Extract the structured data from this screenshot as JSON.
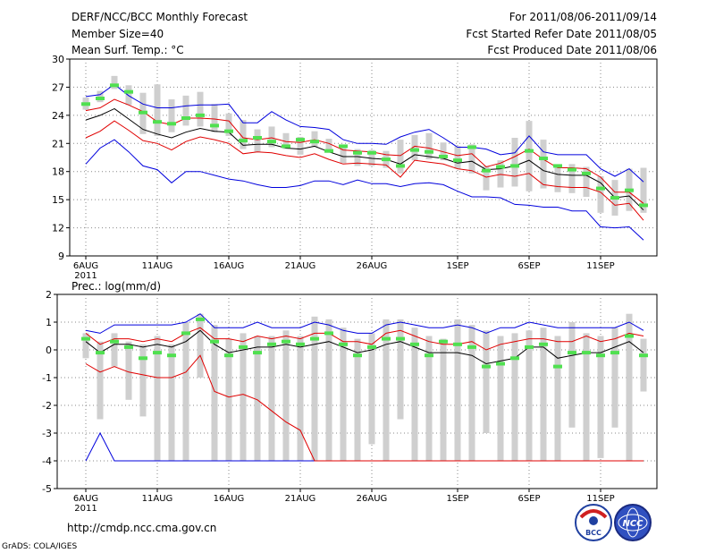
{
  "header": {
    "title": "DERF/NCC/BCC Monthly Forecast",
    "member_size": "Member Size=40",
    "variable": "Mean Surf. Temp.: °C",
    "period": "For 2011/08/06-2011/09/14",
    "refer_date": "Fcst Started Refer Date 2011/08/05",
    "produced_date": "Fcst Produced Date 2011/08/06"
  },
  "footer": {
    "url": "http://cmdp.ncc.cma.gov.cn",
    "grads": "GrADS: COLA/IGES"
  },
  "logos": {
    "bcc": "BCC",
    "ncc": "NCC"
  },
  "colors": {
    "box": "#cfcfcf",
    "median": "#50e050",
    "mean": "#000000",
    "inner": "#e00000",
    "outer": "#0000dd",
    "grid": "#888888"
  },
  "chart_data": [
    {
      "type": "box",
      "title": "Mean Surf. Temp.: °C",
      "ylim": [
        9,
        30
      ],
      "yticks": [
        9,
        12,
        15,
        18,
        21,
        24,
        27,
        30
      ],
      "xlim": [
        0,
        39
      ],
      "xtick_positions": [
        0,
        5,
        10,
        15,
        20,
        26,
        31,
        36
      ],
      "xtick_labels": [
        "6AUG",
        "11AUG",
        "16AUG",
        "21AUG",
        "26AUG",
        "1SEP",
        "6SEP",
        "11SEP"
      ],
      "year_label": "2011",
      "box_low": [
        24.6,
        25.4,
        26.8,
        25.1,
        22.0,
        21.8,
        22.2,
        22.9,
        22.8,
        22.2,
        21.8,
        20.4,
        20.1,
        20.6,
        20.4,
        19.8,
        20.6,
        20.0,
        18.9,
        18.6,
        18.6,
        18.4,
        17.8,
        19.2,
        19.3,
        19.2,
        18.3,
        17.8,
        16.0,
        16.3,
        16.4,
        15.9,
        16.2,
        15.8,
        15.7,
        15.3,
        13.6,
        13.3,
        13.8,
        13.6
      ],
      "box_high": [
        25.9,
        26.6,
        28.2,
        27.2,
        26.4,
        27.3,
        25.7,
        26.1,
        26.5,
        25.2,
        24.2,
        23.5,
        22.5,
        22.8,
        22.1,
        21.7,
        22.3,
        21.5,
        20.8,
        20.4,
        20.3,
        20.2,
        21.4,
        21.9,
        22.1,
        21.1,
        20.7,
        20.9,
        18.6,
        19.2,
        21.6,
        23.4,
        21.4,
        18.6,
        18.8,
        18.5,
        17.5,
        17.1,
        18.3,
        18.4
      ],
      "median": [
        25.2,
        25.8,
        27.2,
        26.5,
        24.3,
        23.3,
        23.1,
        23.7,
        24.0,
        22.9,
        22.3,
        21.3,
        21.6,
        21.2,
        20.7,
        21.4,
        21.2,
        20.2,
        20.7,
        20.0,
        20.0,
        19.3,
        18.6,
        20.3,
        20.1,
        19.6,
        19.2,
        20.6,
        18.1,
        18.5,
        18.6,
        20.2,
        19.4,
        18.6,
        18.2,
        17.8,
        16.2,
        15.2,
        16.0,
        14.4
      ],
      "mean": [
        23.5,
        24.0,
        24.7,
        23.6,
        22.5,
        22.0,
        21.6,
        22.2,
        22.6,
        22.3,
        22.2,
        20.8,
        20.9,
        20.9,
        20.5,
        20.4,
        20.7,
        20.1,
        19.6,
        19.6,
        19.4,
        19.3,
        18.8,
        19.8,
        19.6,
        19.4,
        18.9,
        19.1,
        18.2,
        18.3,
        18.6,
        19.2,
        18.1,
        17.7,
        17.6,
        17.6,
        16.8,
        15.2,
        15.4,
        13.9
      ],
      "inner_high": [
        24.5,
        24.8,
        25.7,
        25.1,
        24.4,
        23.3,
        23.0,
        23.7,
        23.7,
        23.6,
        23.4,
        21.6,
        21.4,
        21.6,
        21.2,
        21.1,
        21.4,
        21.0,
        20.3,
        20.2,
        20.1,
        19.8,
        19.7,
        20.7,
        20.5,
        20.1,
        19.7,
        19.9,
        18.5,
        18.9,
        19.6,
        20.4,
        19.3,
        18.4,
        18.4,
        18.3,
        17.4,
        15.8,
        15.8,
        14.6
      ],
      "inner_low": [
        21.6,
        22.3,
        23.4,
        22.4,
        21.3,
        21.0,
        20.3,
        21.2,
        21.7,
        21.4,
        21.0,
        19.9,
        20.1,
        20.0,
        19.7,
        19.5,
        19.9,
        19.3,
        18.8,
        18.9,
        18.8,
        18.7,
        17.4,
        19.2,
        19.0,
        18.8,
        18.3,
        18.1,
        17.4,
        17.7,
        17.5,
        17.8,
        16.6,
        16.4,
        16.3,
        16.3,
        15.8,
        14.4,
        14.6,
        12.8
      ],
      "outer_high": [
        26.0,
        26.2,
        27.3,
        26.1,
        25.2,
        24.8,
        24.8,
        25.0,
        25.1,
        25.1,
        25.2,
        23.2,
        23.2,
        24.4,
        23.5,
        22.8,
        22.7,
        22.5,
        21.4,
        21.0,
        21.0,
        20.9,
        21.7,
        22.2,
        22.5,
        21.6,
        20.6,
        20.6,
        20.4,
        19.8,
        20.0,
        21.8,
        20.1,
        19.8,
        19.8,
        19.8,
        18.3,
        17.5,
        18.3,
        16.9
      ],
      "outer_low": [
        18.8,
        20.5,
        21.4,
        20.1,
        18.6,
        18.2,
        16.8,
        18.0,
        18.0,
        17.6,
        17.2,
        17.0,
        16.6,
        16.3,
        16.3,
        16.5,
        17.0,
        17.0,
        16.6,
        17.1,
        16.7,
        16.7,
        16.4,
        16.7,
        16.8,
        16.6,
        15.9,
        15.3,
        15.3,
        15.2,
        14.5,
        14.4,
        14.2,
        14.2,
        13.8,
        13.8,
        12.1,
        12.0,
        12.1,
        10.7
      ]
    },
    {
      "type": "box",
      "title": "Prec.: log(mm/d)",
      "ylim": [
        -5,
        2
      ],
      "yticks": [
        -5,
        -4,
        -3,
        -2,
        -1,
        0,
        1,
        2
      ],
      "xlim": [
        0,
        39
      ],
      "xtick_positions": [
        0,
        5,
        10,
        15,
        20,
        26,
        31,
        36
      ],
      "xtick_labels": [
        "6AUG",
        "11AUG",
        "16AUG",
        "21AUG",
        "26AUG",
        "1SEP",
        "6SEP",
        "11SEP"
      ],
      "year_label": "2011",
      "box_low": [
        -0.3,
        -2.5,
        -0.6,
        -1.8,
        -2.4,
        -4.0,
        -4.0,
        -4.0,
        -1.0,
        -4.0,
        -4.0,
        -4.0,
        -4.0,
        -4.0,
        -4.0,
        -4.0,
        -4.0,
        -4.0,
        -4.0,
        -4.0,
        -3.4,
        -4.0,
        -2.5,
        -4.0,
        -4.0,
        -4.0,
        -4.0,
        -4.0,
        -3.0,
        -4.0,
        -4.0,
        -4.0,
        -4.0,
        -4.0,
        -2.8,
        -4.0,
        -3.9,
        -2.8,
        -4.0,
        -1.5
      ],
      "box_high": [
        0.6,
        0.3,
        0.6,
        0.3,
        0.2,
        0.5,
        0.2,
        1.0,
        1.3,
        0.9,
        0.4,
        0.6,
        0.5,
        0.5,
        0.7,
        0.5,
        1.2,
        1.1,
        0.8,
        0.4,
        0.6,
        1.1,
        1.1,
        0.8,
        0.5,
        0.4,
        1.1,
        0.9,
        0.7,
        0.5,
        0.6,
        0.7,
        0.8,
        0.5,
        1.0,
        0.6,
        0.5,
        0.8,
        1.3,
        0.4
      ],
      "median": [
        0.4,
        -0.1,
        0.3,
        0.1,
        -0.3,
        -0.1,
        -0.2,
        0.6,
        1.1,
        0.3,
        -0.2,
        0.1,
        -0.1,
        0.2,
        0.3,
        0.2,
        0.4,
        0.6,
        0.2,
        -0.2,
        0.1,
        0.4,
        0.4,
        0.2,
        -0.2,
        0.3,
        0.2,
        0.1,
        -0.6,
        -0.5,
        -0.3,
        0.1,
        0.2,
        -0.6,
        -0.1,
        -0.1,
        -0.2,
        -0.1,
        0.5,
        -0.2
      ],
      "mean": [
        0.3,
        -0.1,
        0.2,
        0.2,
        0.1,
        0.2,
        0.1,
        0.3,
        0.7,
        0.2,
        -0.1,
        0.0,
        0.1,
        0.1,
        0.2,
        0.1,
        0.2,
        0.3,
        0.1,
        -0.1,
        0.0,
        0.2,
        0.3,
        0.1,
        -0.1,
        -0.1,
        -0.1,
        -0.2,
        -0.5,
        -0.4,
        -0.3,
        0.1,
        0.1,
        -0.3,
        -0.2,
        -0.1,
        -0.1,
        0.1,
        0.3,
        -0.1
      ],
      "inner_high": [
        0.6,
        0.2,
        0.4,
        0.4,
        0.3,
        0.4,
        0.3,
        0.6,
        0.8,
        0.4,
        0.4,
        0.3,
        0.5,
        0.4,
        0.5,
        0.4,
        0.6,
        0.6,
        0.3,
        0.3,
        0.2,
        0.6,
        0.7,
        0.5,
        0.3,
        0.2,
        0.2,
        0.3,
        0.0,
        0.2,
        0.3,
        0.4,
        0.4,
        0.3,
        0.3,
        0.5,
        0.3,
        0.4,
        0.6,
        0.5
      ],
      "inner_low": [
        -0.5,
        -0.8,
        -0.6,
        -0.8,
        -0.9,
        -1.0,
        -1.0,
        -0.8,
        -0.2,
        -1.5,
        -1.7,
        -1.6,
        -1.8,
        -2.2,
        -2.6,
        -2.9,
        -4.0,
        -4.0,
        -4.0,
        -4.0,
        -4.0,
        -4.0,
        -4.0,
        -4.0,
        -4.0,
        -4.0,
        -4.0,
        -4.0,
        -4.0,
        -4.0,
        -4.0,
        -4.0,
        -4.0,
        -4.0,
        -4.0,
        -4.0,
        -4.0,
        -4.0,
        -4.0,
        -4.0
      ],
      "outer_high": [
        0.7,
        0.6,
        0.9,
        0.9,
        0.9,
        0.9,
        0.9,
        1.0,
        1.3,
        0.8,
        0.8,
        0.8,
        1.0,
        0.8,
        0.8,
        0.8,
        1.0,
        0.9,
        0.7,
        0.6,
        0.6,
        0.9,
        1.0,
        0.9,
        0.8,
        0.8,
        0.9,
        0.8,
        0.6,
        0.8,
        0.8,
        1.0,
        0.9,
        0.8,
        0.8,
        0.8,
        0.8,
        0.8,
        1.0,
        0.7
      ],
      "outer_low": [
        -4.0,
        -3.0,
        -4.0,
        -4.0,
        -4.0,
        -4.0,
        -4.0,
        -4.0,
        -4.0,
        -4.0,
        -4.0,
        -4.0,
        -4.0,
        -4.0,
        -4.0,
        -4.0,
        -4.0,
        -4.0,
        -4.0,
        -4.0,
        -4.0,
        -4.0,
        -4.0,
        -4.0,
        -4.0,
        -4.0,
        -4.0,
        -4.0,
        -4.0,
        -4.0,
        -4.0,
        -4.0,
        -4.0,
        -4.0,
        -4.0,
        -4.0,
        -4.0,
        -4.0,
        -4.0,
        -4.0
      ]
    }
  ]
}
